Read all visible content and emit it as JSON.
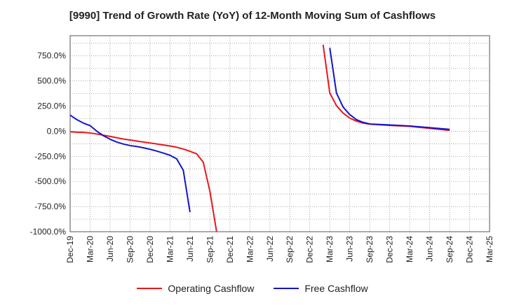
{
  "chart_data": {
    "type": "line",
    "title": "[9990]  Trend of Growth Rate (YoY) of 12-Month Moving Sum of Cashflows",
    "xlabel": "",
    "ylabel": "",
    "ylim": [
      -1000,
      950
    ],
    "y_ticks": [
      "750.0%",
      "500.0%",
      "250.0%",
      "0.0%",
      "-250.0%",
      "-500.0%",
      "-750.0%",
      "-1000.0%"
    ],
    "y_tick_values": [
      750,
      500,
      250,
      0,
      -250,
      -500,
      -750,
      -1000
    ],
    "x_ticks": [
      "Dec-19",
      "Mar-20",
      "Jun-20",
      "Sep-20",
      "Dec-20",
      "Mar-21",
      "Jun-21",
      "Sep-21",
      "Dec-21",
      "Mar-22",
      "Jun-22",
      "Sep-22",
      "Dec-22",
      "Mar-23",
      "Jun-23",
      "Sep-23",
      "Dec-23",
      "Mar-24",
      "Jun-24",
      "Sep-24",
      "Dec-24",
      "Mar-25"
    ],
    "grid": true,
    "legend_position": "bottom",
    "series": [
      {
        "name": "Operating Cashflow",
        "color": "#e8171c",
        "points": [
          [
            "Dec-19",
            -5
          ],
          [
            "Jan-20",
            -10
          ],
          [
            "Feb-20",
            -12
          ],
          [
            "Mar-20",
            -18
          ],
          [
            "Apr-20",
            -28
          ],
          [
            "May-20",
            -40
          ],
          [
            "Jun-20",
            -52
          ],
          [
            "Jul-20",
            -65
          ],
          [
            "Aug-20",
            -78
          ],
          [
            "Sep-20",
            -88
          ],
          [
            "Oct-20",
            -98
          ],
          [
            "Nov-20",
            -108
          ],
          [
            "Dec-20",
            -117
          ],
          [
            "Jan-21",
            -127
          ],
          [
            "Feb-21",
            -137
          ],
          [
            "Mar-21",
            -147
          ],
          [
            "Apr-21",
            -160
          ],
          [
            "May-21",
            -178
          ],
          [
            "Jun-21",
            -200
          ],
          [
            "Jul-21",
            -225
          ],
          [
            "Aug-21",
            -310
          ],
          [
            "Sep-21",
            -600
          ],
          [
            "Oct-21",
            -1000
          ],
          null,
          [
            "Feb-23",
            860
          ],
          [
            "Mar-23",
            380
          ],
          [
            "Apr-23",
            255
          ],
          [
            "May-23",
            180
          ],
          [
            "Jun-23",
            130
          ],
          [
            "Jul-23",
            100
          ],
          [
            "Aug-23",
            80
          ],
          [
            "Sep-23",
            70
          ],
          [
            "Dec-23",
            58
          ],
          [
            "Mar-24",
            48
          ],
          [
            "Jun-24",
            28
          ],
          [
            "Sep-24",
            8
          ]
        ]
      },
      {
        "name": "Free Cashflow",
        "color": "#1515c8",
        "points": [
          [
            "Dec-19",
            160
          ],
          [
            "Jan-20",
            115
          ],
          [
            "Feb-20",
            80
          ],
          [
            "Mar-20",
            55
          ],
          [
            "Apr-20",
            0
          ],
          [
            "May-20",
            -45
          ],
          [
            "Jun-20",
            -80
          ],
          [
            "Jul-20",
            -108
          ],
          [
            "Aug-20",
            -128
          ],
          [
            "Sep-20",
            -143
          ],
          [
            "Oct-20",
            -152
          ],
          [
            "Nov-20",
            -165
          ],
          [
            "Dec-20",
            -180
          ],
          [
            "Jan-21",
            -198
          ],
          [
            "Feb-21",
            -218
          ],
          [
            "Mar-21",
            -240
          ],
          [
            "Apr-21",
            -275
          ],
          [
            "May-21",
            -390
          ],
          [
            "Jun-21",
            -805
          ],
          null,
          [
            "Mar-23",
            830
          ],
          [
            "Apr-23",
            380
          ],
          [
            "May-23",
            240
          ],
          [
            "Jun-23",
            165
          ],
          [
            "Jul-23",
            115
          ],
          [
            "Aug-23",
            88
          ],
          [
            "Sep-23",
            72
          ],
          [
            "Dec-23",
            62
          ],
          [
            "Mar-24",
            52
          ],
          [
            "Jun-24",
            35
          ],
          [
            "Sep-24",
            18
          ]
        ]
      }
    ]
  }
}
